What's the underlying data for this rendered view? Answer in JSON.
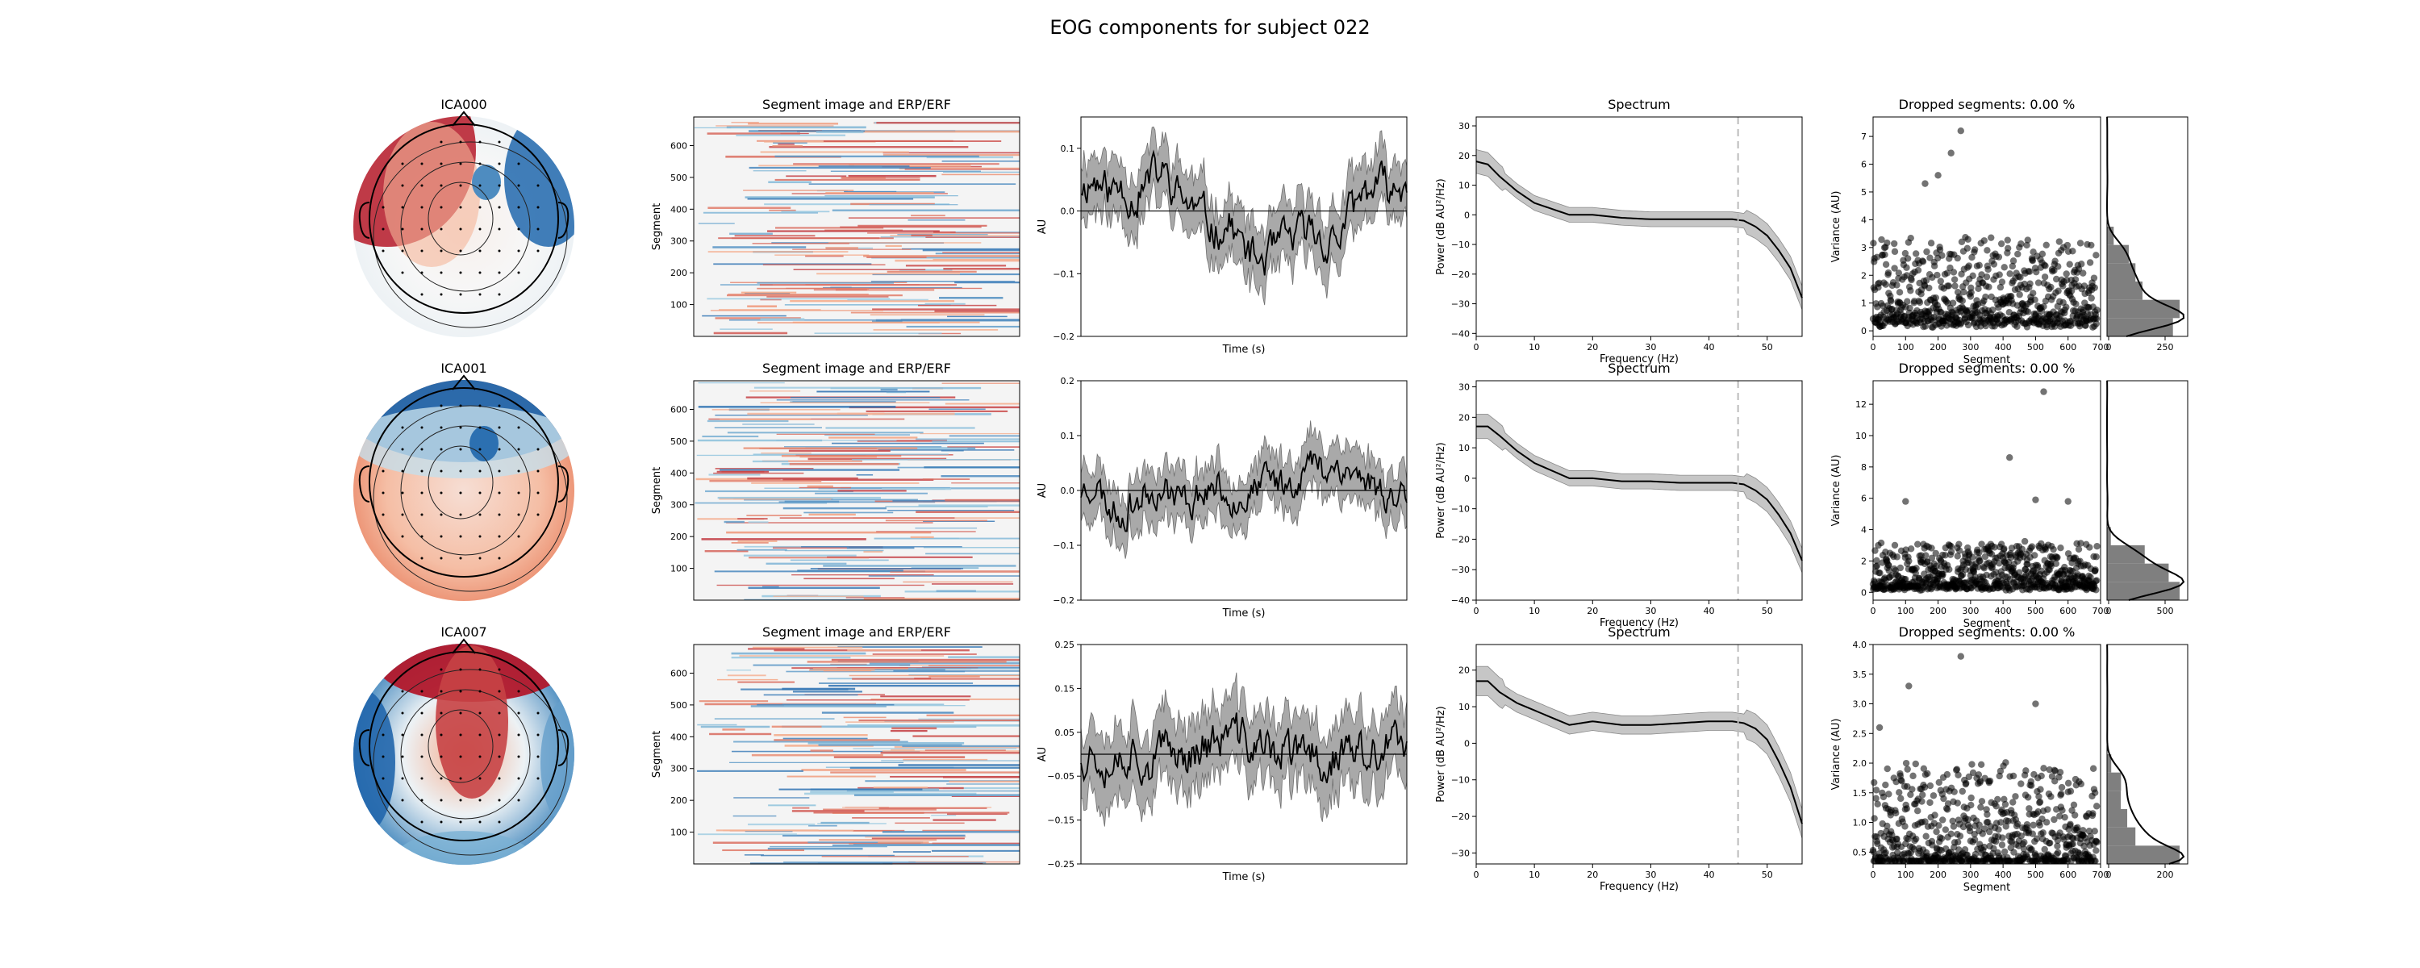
{
  "figure": {
    "title": "EOG components for subject 022"
  },
  "colors": {
    "red": "#b2182b",
    "blue": "#2166ac",
    "line": "#000000",
    "band": "#a9a9a9",
    "dash": "#bbbbbb",
    "hist": "#7f7f7f"
  },
  "chart_data": [
    {
      "component": "ICA000",
      "topomap": {
        "title": "ICA000",
        "pattern": "frontal red left, blue right-frontal (eye-blink like)"
      },
      "image": {
        "title": "Segment image and ERP/ERF",
        "ylabel": "Segment",
        "yticks": [
          "100",
          "200",
          "300",
          "400",
          "500",
          "600"
        ],
        "ylim": [
          0,
          690
        ],
        "type": "heatmap"
      },
      "erp": {
        "type": "line",
        "ylabel": "AU",
        "xlabel": "Time (s)",
        "ylim": [
          -0.2,
          0.15
        ],
        "yticks": [
          "0.1",
          "0.0",
          "−0.1",
          "−0.2"
        ],
        "mean_profile": [
          0.04,
          0.05,
          0.03,
          0.04,
          0.02,
          0.05,
          0.06,
          0.03,
          0.01,
          -0.01,
          -0.03,
          -0.02,
          -0.06,
          -0.08,
          -0.07,
          -0.05,
          -0.04,
          -0.03,
          -0.05,
          -0.04,
          0.0,
          0.03,
          0.04,
          0.03,
          0.05
        ],
        "band_halfwidth": 0.045,
        "seed": 11
      },
      "spectrum": {
        "type": "line",
        "title": "Spectrum",
        "xlabel": "Frequency (Hz)",
        "ylabel": "Power (dB AU²/Hz)",
        "xlim": [
          0,
          56
        ],
        "ylim": [
          -41,
          33
        ],
        "xticks": [
          "0",
          "10",
          "20",
          "30",
          "40",
          "50"
        ],
        "yticks": [
          "30",
          "20",
          "10",
          "0",
          "−10",
          "−20",
          "−30",
          "−40"
        ],
        "points": [
          [
            0,
            18
          ],
          [
            2,
            17
          ],
          [
            4,
            13
          ],
          [
            7,
            8
          ],
          [
            10,
            4
          ],
          [
            13,
            2
          ],
          [
            16,
            0
          ],
          [
            20,
            0
          ],
          [
            25,
            -1
          ],
          [
            30,
            -1.5
          ],
          [
            35,
            -1.5
          ],
          [
            40,
            -1.5
          ],
          [
            44,
            -1.5
          ],
          [
            46,
            -2
          ],
          [
            48,
            -4
          ],
          [
            50,
            -7
          ],
          [
            52,
            -12
          ],
          [
            54,
            -18
          ],
          [
            56,
            -28
          ]
        ],
        "dashed_line_hz": 45
      },
      "dropped": {
        "type": "scatter",
        "title": "Dropped segments: 0.00 %",
        "ylabel": "Variance (AU)",
        "xlabel": "Segment",
        "xlim": [
          0,
          700
        ],
        "ylim": [
          -0.2,
          7.7
        ],
        "xticks": [
          "0",
          "100",
          "200",
          "300",
          "400",
          "500",
          "600",
          "700"
        ],
        "yticks": [
          "0",
          "1",
          "2",
          "3",
          "4",
          "5",
          "6",
          "7"
        ],
        "hist_xticks": [
          "0",
          "250"
        ],
        "seed": 101,
        "base": 0.9,
        "spread": 1.4,
        "outliers": [
          [
            270,
            7.2
          ],
          [
            240,
            6.4
          ],
          [
            200,
            5.6
          ],
          [
            160,
            5.3
          ]
        ]
      }
    },
    {
      "component": "ICA001",
      "topomap": {
        "title": "ICA001",
        "pattern": "frontal blue, posterior red"
      },
      "image": {
        "title": "Segment image and ERP/ERF",
        "ylabel": "Segment",
        "yticks": [
          "100",
          "200",
          "300",
          "400",
          "500",
          "600"
        ],
        "ylim": [
          0,
          690
        ],
        "type": "heatmap"
      },
      "erp": {
        "type": "line",
        "ylabel": "AU",
        "xlabel": "Time (s)",
        "ylim": [
          -0.2,
          0.2
        ],
        "yticks": [
          "0.2",
          "0.1",
          "0.0",
          "−0.1",
          "−0.2"
        ],
        "mean_profile": [
          0.0,
          0.02,
          -0.03,
          -0.04,
          -0.02,
          0.0,
          0.01,
          -0.01,
          -0.02,
          0.0,
          0.01,
          -0.01,
          -0.01,
          0.0,
          0.02,
          0.01,
          0.03,
          0.05,
          0.04,
          0.05,
          0.03,
          0.02,
          0.0,
          -0.01,
          0.0
        ],
        "band_halfwidth": 0.045,
        "seed": 23
      },
      "spectrum": {
        "type": "line",
        "title": "Spectrum",
        "xlabel": "Frequency (Hz)",
        "ylabel": "Power (dB AU²/Hz)",
        "xlim": [
          0,
          56
        ],
        "ylim": [
          -40,
          32
        ],
        "xticks": [
          "0",
          "10",
          "20",
          "30",
          "40",
          "50"
        ],
        "yticks": [
          "30",
          "20",
          "10",
          "0",
          "−10",
          "−20",
          "−30",
          "−40"
        ],
        "points": [
          [
            0,
            17
          ],
          [
            2,
            17
          ],
          [
            4,
            14
          ],
          [
            7,
            9
          ],
          [
            10,
            5
          ],
          [
            13,
            2.5
          ],
          [
            16,
            0
          ],
          [
            20,
            0
          ],
          [
            25,
            -1
          ],
          [
            30,
            -1
          ],
          [
            35,
            -1.5
          ],
          [
            40,
            -1.5
          ],
          [
            44,
            -1.5
          ],
          [
            46,
            -2
          ],
          [
            48,
            -4
          ],
          [
            50,
            -7
          ],
          [
            52,
            -12
          ],
          [
            54,
            -18
          ],
          [
            56,
            -27
          ]
        ],
        "dashed_line_hz": 45
      },
      "dropped": {
        "type": "scatter",
        "title": "Dropped segments: 0.00 %",
        "ylabel": "Variance (AU)",
        "xlabel": "Segment",
        "xlim": [
          0,
          700
        ],
        "ylim": [
          -0.5,
          13.5
        ],
        "xticks": [
          "0",
          "100",
          "200",
          "300",
          "400",
          "500",
          "600",
          "700"
        ],
        "yticks": [
          "0",
          "2",
          "4",
          "6",
          "8",
          "10",
          "12"
        ],
        "hist_xticks": [
          "0",
          "500"
        ],
        "seed": 202,
        "base": 0.9,
        "spread": 1.3,
        "outliers": [
          [
            525,
            12.8
          ],
          [
            420,
            8.6
          ],
          [
            100,
            5.8
          ],
          [
            500,
            5.9
          ],
          [
            600,
            5.8
          ]
        ]
      }
    },
    {
      "component": "ICA007",
      "topomap": {
        "title": "ICA007",
        "pattern": "central red, lateral blue"
      },
      "image": {
        "title": "Segment image and ERP/ERF",
        "ylabel": "Segment",
        "yticks": [
          "100",
          "200",
          "300",
          "400",
          "500",
          "600"
        ],
        "ylim": [
          0,
          690
        ],
        "type": "heatmap"
      },
      "erp": {
        "type": "line",
        "ylabel": "AU",
        "xlabel": "Time (s)",
        "ylim": [
          -0.25,
          0.25
        ],
        "yticks": [
          "0.25",
          "0.15",
          "0.05",
          "−0.05",
          "−0.15",
          "−0.25"
        ],
        "mean_profile": [
          0.0,
          0.01,
          -0.01,
          0.0,
          0.02,
          -0.02,
          0.0,
          0.01,
          0.0,
          0.03,
          0.02,
          0.05,
          0.03,
          0.02,
          0.0,
          0.01,
          -0.01,
          0.0,
          -0.02,
          0.0,
          0.01,
          -0.01,
          0.0,
          0.02,
          0.0
        ],
        "band_halfwidth": 0.075,
        "seed": 37
      },
      "spectrum": {
        "type": "line",
        "title": "Spectrum",
        "xlabel": "Frequency (Hz)",
        "ylabel": "Power (dB AU²/Hz)",
        "xlim": [
          0,
          56
        ],
        "ylim": [
          -33,
          27
        ],
        "xticks": [
          "0",
          "10",
          "20",
          "30",
          "40",
          "50"
        ],
        "yticks": [
          "20",
          "10",
          "0",
          "−10",
          "−20",
          "−30"
        ],
        "points": [
          [
            0,
            17
          ],
          [
            2,
            17
          ],
          [
            4,
            14
          ],
          [
            7,
            11
          ],
          [
            10,
            9
          ],
          [
            13,
            7
          ],
          [
            16,
            5
          ],
          [
            20,
            6
          ],
          [
            25,
            5
          ],
          [
            30,
            5
          ],
          [
            35,
            5.5
          ],
          [
            40,
            6
          ],
          [
            44,
            6
          ],
          [
            46,
            5.5
          ],
          [
            48,
            4
          ],
          [
            50,
            1
          ],
          [
            52,
            -5
          ],
          [
            54,
            -12
          ],
          [
            56,
            -22
          ]
        ],
        "dashed_line_hz": 45
      },
      "dropped": {
        "type": "scatter",
        "title": "Dropped segments: 0.00 %",
        "ylabel": "Variance (AU)",
        "xlabel": "Segment",
        "xlim": [
          0,
          700
        ],
        "ylim": [
          0.3,
          4.0
        ],
        "xticks": [
          "0",
          "100",
          "200",
          "300",
          "400",
          "500",
          "600",
          "700"
        ],
        "yticks": [
          "4.0",
          "3.5",
          "3.0",
          "2.5",
          "2.0",
          "1.5",
          "1.0",
          "0.5"
        ],
        "hist_xticks": [
          "0",
          "200"
        ],
        "seed": 303,
        "base": 0.95,
        "spread": 0.75,
        "outliers": [
          [
            270,
            3.8
          ],
          [
            110,
            3.3
          ],
          [
            500,
            3.0
          ],
          [
            20,
            2.6
          ]
        ]
      }
    }
  ]
}
